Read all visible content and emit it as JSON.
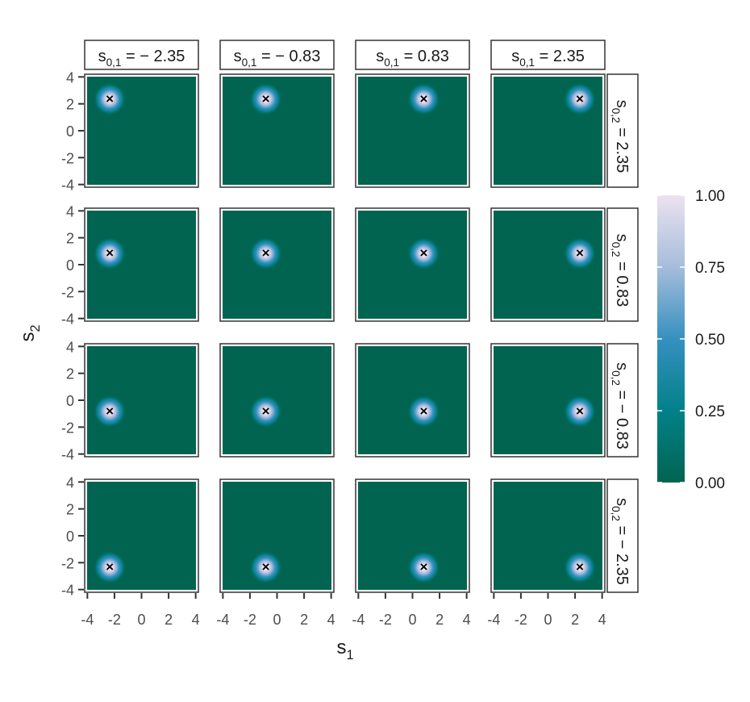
{
  "chart_data": {
    "type": "heatmap",
    "facet_layout": "grid",
    "xlabel": "s",
    "xlabel_sub": "1",
    "ylabel": "s",
    "ylabel_sub": "2",
    "xlim": [
      -4.2,
      4.2
    ],
    "ylim": [
      -4.2,
      4.2
    ],
    "x_ticks": [
      -4,
      -2,
      0,
      2,
      4
    ],
    "y_ticks": [
      -4,
      -2,
      0,
      2,
      4
    ],
    "x_tick_labels": [
      "-4",
      "-2",
      "0",
      "2",
      "4"
    ],
    "y_tick_labels": [
      "-4",
      "-2",
      "0",
      "2",
      "4"
    ],
    "col_facets": [
      {
        "label": "s",
        "sub": "0,1",
        "rest": " = − 2.35",
        "value": -2.35
      },
      {
        "label": "s",
        "sub": "0,1",
        "rest": " = − 0.83",
        "value": -0.83
      },
      {
        "label": "s",
        "sub": "0,1",
        "rest": " = 0.83",
        "value": 0.83
      },
      {
        "label": "s",
        "sub": "0,1",
        "rest": " = 2.35",
        "value": 2.35
      }
    ],
    "row_facets": [
      {
        "label": "s",
        "sub": "0,2",
        "rest": " = 2.35",
        "value": 2.35
      },
      {
        "label": "s",
        "sub": "0,2",
        "rest": " = 0.83",
        "value": 0.83
      },
      {
        "label": "s",
        "sub": "0,2",
        "rest": " = − 0.83",
        "value": -0.83
      },
      {
        "label": "s",
        "sub": "0,2",
        "rest": " = − 2.35",
        "value": -2.35
      }
    ],
    "kernel": {
      "shape": "gaussian",
      "bandwidth": 0.55
    },
    "marker": "×",
    "colorbar": {
      "range": [
        0,
        1
      ],
      "tick_values": [
        0,
        0.25,
        0.5,
        0.75,
        1
      ],
      "ticks": [
        "0.00",
        "0.25",
        "0.50",
        "0.75",
        "1.00"
      ],
      "colors": [
        "#016450",
        "#02818a",
        "#3690c0",
        "#a6bddb",
        "#ece2f0"
      ]
    },
    "grid": false,
    "legend_position": "right"
  }
}
